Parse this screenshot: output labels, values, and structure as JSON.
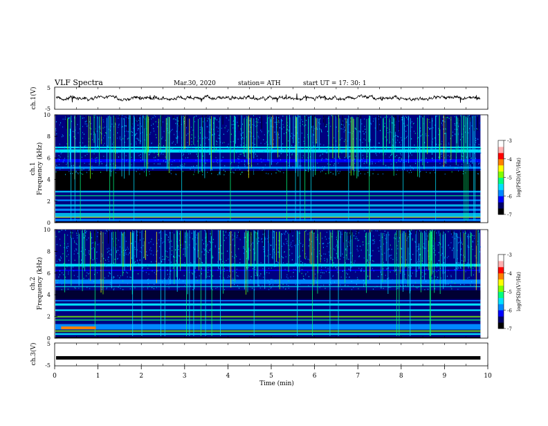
{
  "header": {
    "title": "VLF  Spectra",
    "date": "Mar.30, 2020",
    "station": "station= ATH",
    "start": "start  UT  =    17: 30: 1"
  },
  "xaxis": {
    "label": "Time  (min)",
    "range": [
      0,
      10
    ],
    "ticks": [
      "0",
      "1",
      "2",
      "3",
      "4",
      "5",
      "6",
      "7",
      "8",
      "9",
      "10"
    ]
  },
  "colorbar": {
    "label": "log(PSD)(V²/Hz)",
    "range": [
      -7,
      -3
    ],
    "ticks": [
      "-3",
      "-4",
      "-5",
      "-6",
      "-7"
    ],
    "colors": [
      "#000000",
      "#000066",
      "#0000ff",
      "#0088ff",
      "#00e0ff",
      "#00ff80",
      "#80ff00",
      "#ffff00",
      "#ff8000",
      "#ff0000",
      "#ffb0b0",
      "#ffffff"
    ]
  },
  "chart_data": [
    {
      "type": "line",
      "name": "ch1-waveform",
      "ylabel": "ch.1(V)",
      "ylim": [
        -5,
        5
      ],
      "yticks": [
        "5",
        "-5"
      ],
      "xlim": [
        0,
        10
      ],
      "data_end_min": 9.83,
      "baseline": 0
    },
    {
      "type": "heatmap",
      "name": "ch1-spectrogram",
      "ylabel_channel": "ch.1",
      "ylabel": "Frequency  (kHz)",
      "ylim": [
        0,
        10
      ],
      "yticks": [
        "0",
        "2",
        "4",
        "6",
        "8",
        "10"
      ],
      "xlim": [
        0,
        10
      ],
      "data_end_min": 9.83,
      "zlim": [
        -7,
        -3
      ]
    },
    {
      "type": "heatmap",
      "name": "ch2-spectrogram",
      "ylabel_channel": "ch.2",
      "ylabel": "Frequency  (kHz)",
      "ylim": [
        0,
        10
      ],
      "yticks": [
        "0",
        "2",
        "4",
        "6",
        "8",
        "10"
      ],
      "xlim": [
        0,
        10
      ],
      "data_end_min": 9.83,
      "zlim": [
        -7,
        -3
      ]
    },
    {
      "type": "line",
      "name": "ch3-waveform",
      "ylabel": "ch.3(V)",
      "ylim": [
        -5,
        5
      ],
      "yticks": [
        "5",
        "-5"
      ],
      "xlim": [
        0,
        10
      ],
      "data_end_min": 9.83,
      "baseline": -1.5
    }
  ]
}
